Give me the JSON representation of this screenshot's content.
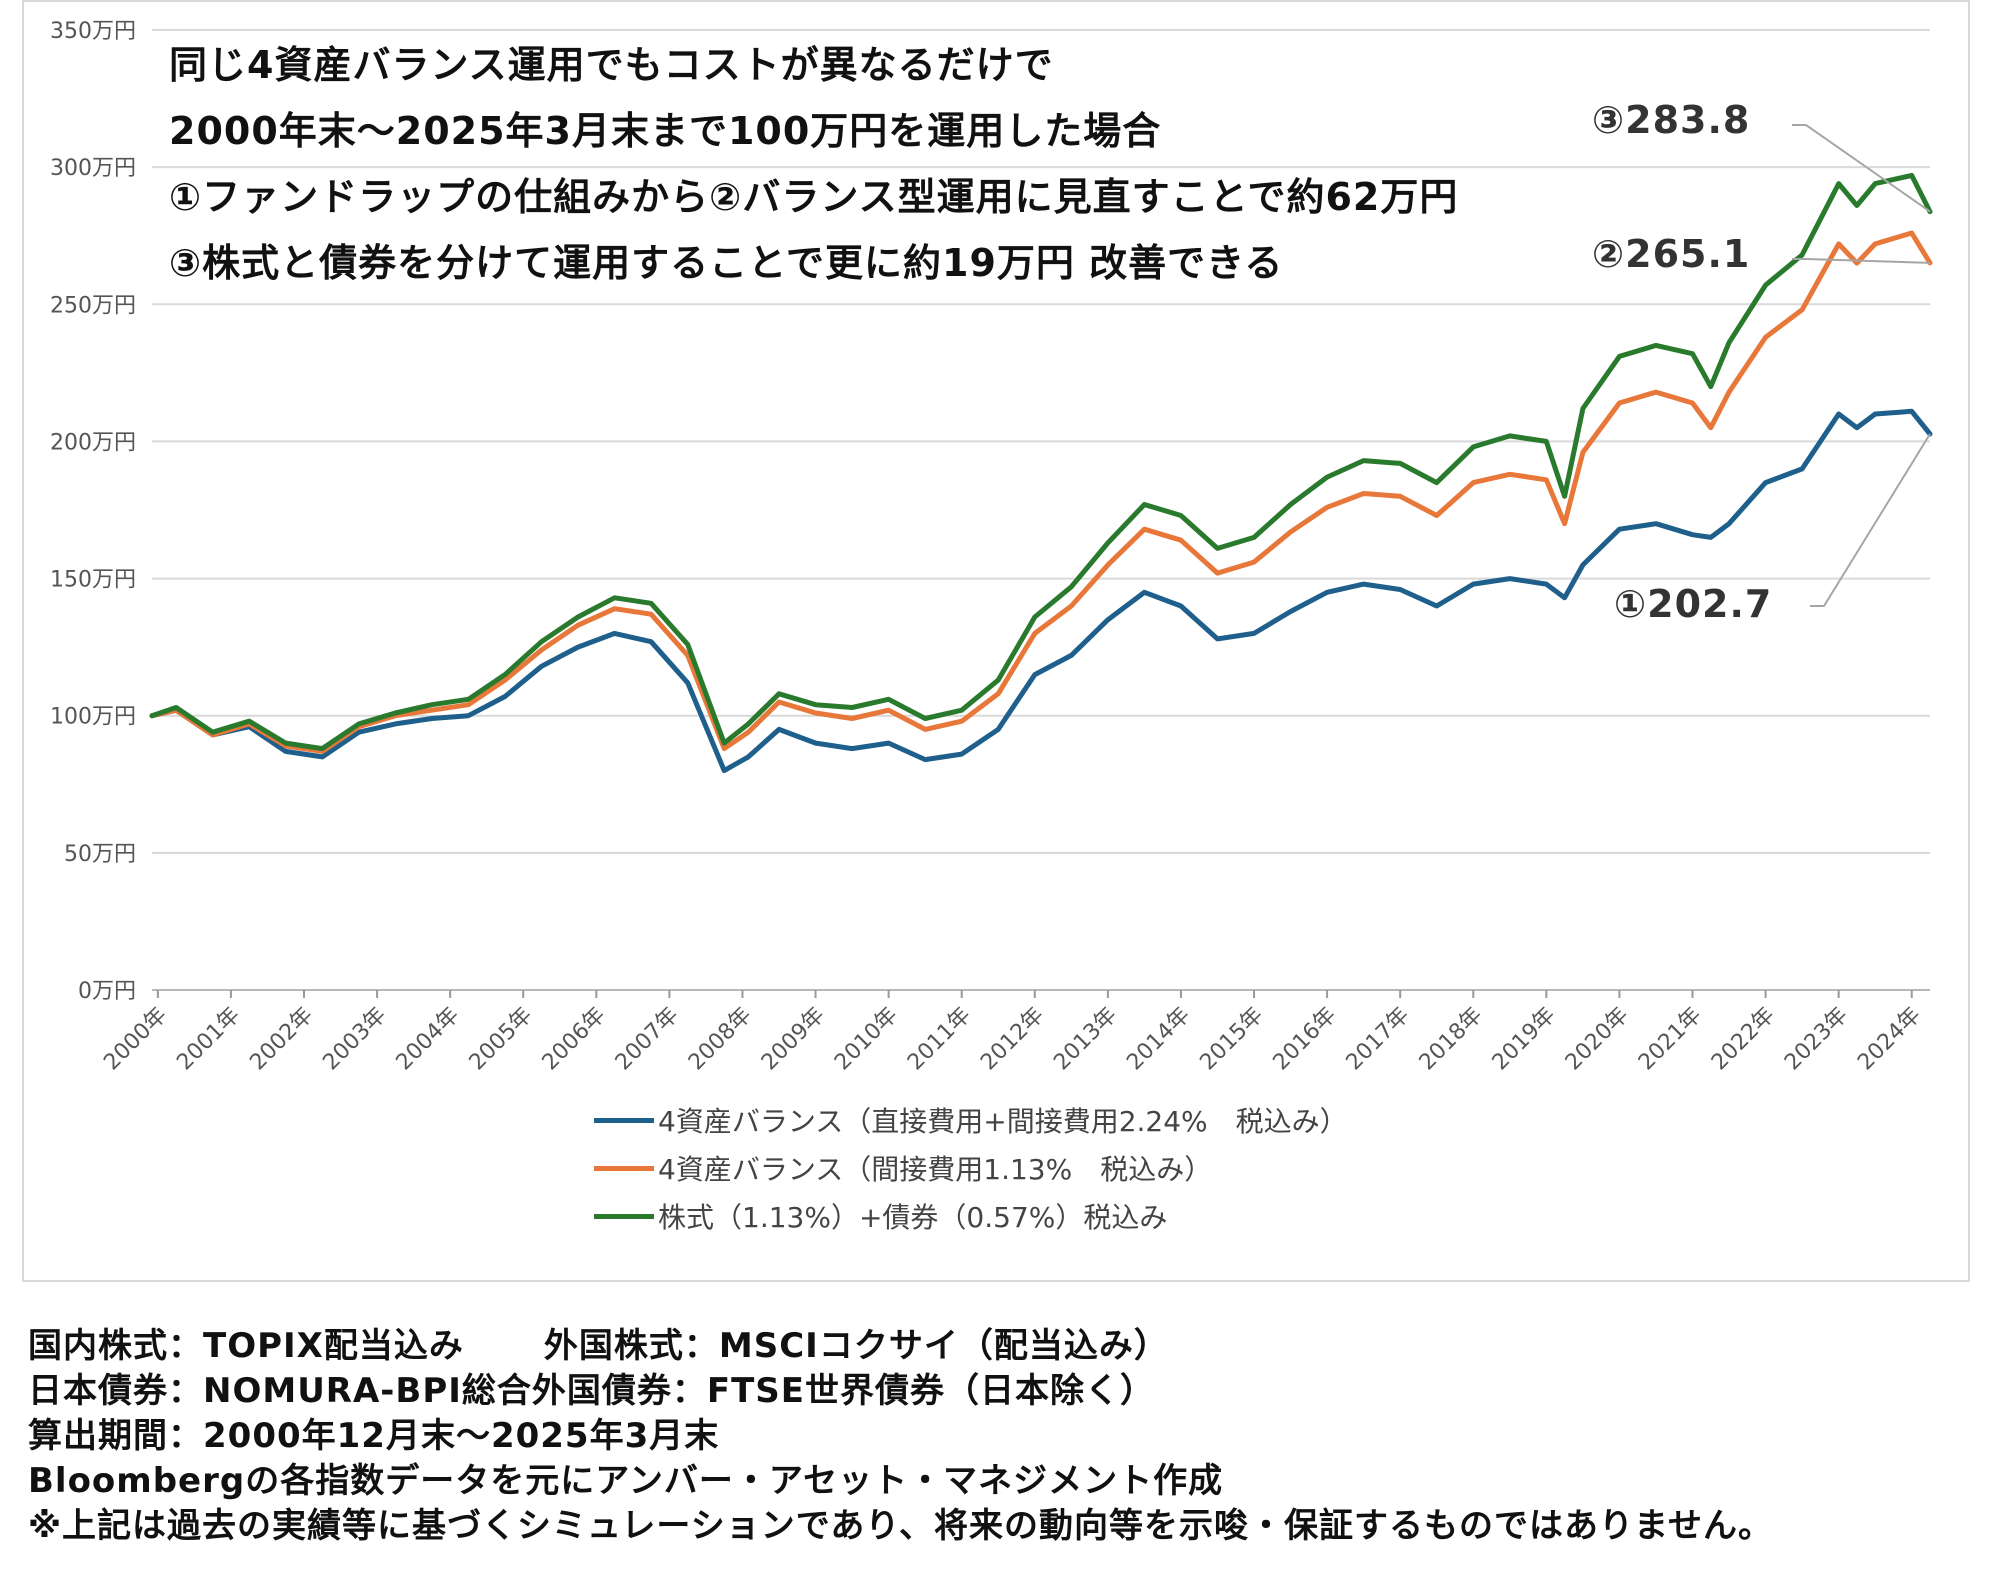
{
  "headline": [
    "同じ4資産バランス運用でもコストが異なるだけで",
    "2000年末～2025年3月末まで100万円を運用した場合",
    "①ファンドラップの仕組みから②バランス型運用に見直すことで約62万円",
    "③株式と債券を分けて運用することで更に約19万円 改善できる"
  ],
  "end_labels": {
    "s3": "③283.8",
    "s2": "②265.1",
    "s1": "①202.7"
  },
  "legend": [
    "4資産バランス（直接費用+間接費用2.24%　税込み）",
    "4資産バランス（間接費用1.13%　税込み）",
    "株式（1.13%）+債券（0.57%）税込み"
  ],
  "notes": {
    "line1a": "国内株式：TOPIX配当込み",
    "line1b": "外国株式：MSCIコクサイ（配当込み）",
    "line2": "日本債券：NOMURA-BPI総合外国債券：FTSE世界債券（日本除く）",
    "line3": "算出期間：2000年12月末～2025年3月末",
    "line4": "Bloombergの各指数データを元にアンバー・アセット・マネジメント作成",
    "line5": "※上記は過去の実績等に基づくシミュレーションであり、将来の動向等を示唆・保証するものではありません。"
  },
  "chart_data": {
    "type": "line",
    "ylim": [
      0,
      350
    ],
    "yticks": [
      0,
      50,
      100,
      150,
      200,
      250,
      300,
      350
    ],
    "ytick_labels": [
      "0万円",
      "50万円",
      "100万円",
      "150万円",
      "200万円",
      "250万円",
      "300万円",
      "350万円"
    ],
    "xlim": [
      2000.92,
      2025.25
    ],
    "xticks": [
      2001,
      2002,
      2003,
      2004,
      2005,
      2006,
      2007,
      2008,
      2009,
      2010,
      2011,
      2012,
      2013,
      2014,
      2015,
      2016,
      2017,
      2018,
      2019,
      2020,
      2021,
      2022,
      2023,
      2024,
      2025
    ],
    "xtick_labels": [
      "2000年",
      "2001年",
      "2002年",
      "2003年",
      "2004年",
      "2005年",
      "2006年",
      "2007年",
      "2008年",
      "2009年",
      "2010年",
      "2011年",
      "2012年",
      "2013年",
      "2014年",
      "2015年",
      "2016年",
      "2017年",
      "2018年",
      "2019年",
      "2020年",
      "2021年",
      "2022年",
      "2023年",
      "2024年"
    ],
    "grid": true,
    "legend_position": "bottom",
    "x": [
      2000.92,
      2001.25,
      2001.75,
      2002.25,
      2002.75,
      2003.25,
      2003.75,
      2004.25,
      2004.75,
      2005.25,
      2005.75,
      2006.25,
      2006.75,
      2007.25,
      2007.75,
      2008.25,
      2008.75,
      2009.08,
      2009.5,
      2010.0,
      2010.5,
      2011.0,
      2011.5,
      2012.0,
      2012.5,
      2013.0,
      2013.5,
      2014.0,
      2014.5,
      2015.0,
      2015.5,
      2016.0,
      2016.5,
      2017.0,
      2017.5,
      2018.0,
      2018.5,
      2019.0,
      2019.5,
      2020.0,
      2020.25,
      2020.5,
      2021.0,
      2021.5,
      2022.0,
      2022.25,
      2022.5,
      2023.0,
      2023.5,
      2024.0,
      2024.25,
      2024.5,
      2025.0,
      2025.25
    ],
    "series": [
      {
        "name": "4資産バランス（直接費用+間接費用2.24%　税込み）",
        "color": "#1f5f8b",
        "values": [
          100,
          102,
          93,
          96,
          87,
          85,
          94,
          97,
          99,
          100,
          107,
          118,
          125,
          130,
          127,
          112,
          80,
          85,
          95,
          90,
          88,
          90,
          84,
          86,
          95,
          115,
          122,
          135,
          145,
          140,
          128,
          130,
          138,
          145,
          148,
          146,
          140,
          148,
          150,
          148,
          143,
          155,
          168,
          170,
          166,
          165,
          170,
          185,
          190,
          210,
          205,
          210,
          211,
          202.7
        ]
      },
      {
        "name": "4資産バランス（間接費用1.13%　税込み）",
        "color": "#e8773a",
        "values": [
          100,
          102,
          93,
          97,
          89,
          87,
          96,
          100,
          102,
          104,
          113,
          124,
          133,
          139,
          137,
          122,
          88,
          94,
          105,
          101,
          99,
          102,
          95,
          98,
          108,
          130,
          140,
          155,
          168,
          164,
          152,
          156,
          167,
          176,
          181,
          180,
          173,
          185,
          188,
          186,
          170,
          196,
          214,
          218,
          214,
          205,
          218,
          238,
          248,
          272,
          265,
          272,
          276,
          265.1
        ]
      },
      {
        "name": "株式（1.13%）+債券（0.57%）税込み",
        "color": "#2a7a2e",
        "values": [
          100,
          103,
          94,
          98,
          90,
          88,
          97,
          101,
          104,
          106,
          115,
          127,
          136,
          143,
          141,
          126,
          90,
          97,
          108,
          104,
          103,
          106,
          99,
          102,
          113,
          136,
          147,
          163,
          177,
          173,
          161,
          165,
          177,
          187,
          193,
          192,
          185,
          198,
          202,
          200,
          180,
          212,
          231,
          235,
          232,
          220,
          236,
          257,
          268,
          294,
          286,
          294,
          297,
          283.8
        ]
      }
    ]
  }
}
